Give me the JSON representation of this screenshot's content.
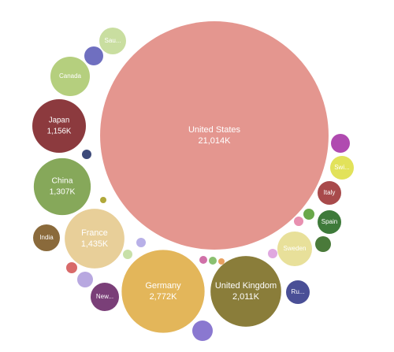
{
  "chart_data": {
    "type": "bubble",
    "categories": [
      "United States",
      "Germany",
      "United Kingdom",
      "France",
      "China",
      "Japan",
      "Canada",
      "India",
      "Italy",
      "Spain",
      "Sweden",
      "Sau...",
      "Swi...",
      "New...",
      "Ru...",
      null,
      null,
      null,
      null,
      null,
      null,
      null,
      null,
      null,
      null,
      null,
      null,
      null,
      null,
      null,
      null
    ],
    "values": [
      21014,
      2772,
      2011,
      1435,
      1307,
      1156,
      625,
      289,
      225,
      225,
      484,
      289,
      225,
      324,
      225,
      144,
      36,
      16,
      36,
      36,
      49,
      100,
      169,
      144,
      49,
      36,
      100,
      36,
      25,
      25,
      16
    ],
    "value_labels": [
      "21,014K",
      "2,772K",
      "2,011K",
      "1,435K",
      "1,307K",
      "1,156K",
      null,
      null,
      null,
      null,
      null,
      null,
      null,
      null,
      null,
      null,
      null,
      null,
      null,
      null,
      null,
      null,
      null,
      null,
      null,
      null,
      null,
      null,
      null,
      null,
      null
    ],
    "colors": [
      "#e4968f",
      "#e3b65a",
      "#8a7d3a",
      "#e8cf99",
      "#86a85a",
      "#8c3a3e",
      "#b5cf7e",
      "#8a6a3b",
      "#a84a4b",
      "#3e7a3a",
      "#e8e09a",
      "#c9dea0",
      "#e2e25a",
      "#7a3f78",
      "#4a4f96",
      "#6f6fc0",
      "#3d4a7a",
      "#b0a83a",
      "#b8b0e8",
      "#c8e0a8",
      "#d86a6a",
      "#b8a8e0",
      "#8a78d0",
      "#b04ab0",
      "#6aa84a",
      "#e890b0",
      "#4a7a3a",
      "#e0a8e0",
      "#d070a8",
      "#8ac070",
      "#e8a060"
    ]
  }
}
